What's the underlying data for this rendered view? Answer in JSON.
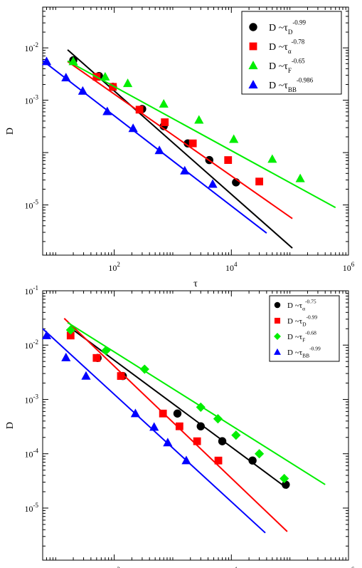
{
  "chart_data": [
    {
      "type": "scatter",
      "xscale": "log",
      "yscale": "log",
      "xlim": [
        6,
        1000000
      ],
      "ylim": [
        1.1e-06,
        0.06
      ],
      "xlabel": "τ",
      "ylabel": "D",
      "grid": false,
      "legend_position": "top-right",
      "x_ticks": [
        {
          "value": 100,
          "base": "10",
          "exp": "2"
        },
        {
          "value": 10000,
          "base": "10",
          "exp": "4"
        },
        {
          "value": 1000000,
          "base": "10",
          "exp": "6"
        }
      ],
      "y_ticks": [
        {
          "value": 0.01,
          "base": "10",
          "exp": "-2"
        },
        {
          "value": 0.001,
          "base": "10",
          "exp": "-3"
        },
        {
          "value": 1e-05,
          "base": "10",
          "exp": "-5"
        }
      ],
      "series": [
        {
          "name": "D ~τ_D^-0.99",
          "legend": {
            "pre": "D ~τ",
            "sub": "D",
            "sup": "-0.99"
          },
          "marker": "circle",
          "color": "#000000",
          "x": [
            20,
            55,
            95,
            300,
            700,
            1800,
            4200,
            12000
          ],
          "y": [
            0.0058,
            0.0029,
            0.0018,
            0.00068,
            0.00032,
            0.00015,
            7.2e-05,
            2.7e-05
          ],
          "fit": {
            "x": [
              16,
              110000
            ],
            "y": [
              0.0092,
              1.5e-06
            ]
          }
        },
        {
          "name": "D ~τ_α^-0.78",
          "legend": {
            "pre": "D ~τ",
            "sub": "α",
            "sup": "-0.78"
          },
          "marker": "square",
          "color": "#ff0000",
          "x": [
            50,
            95,
            270,
            730,
            2200,
            8800,
            30000
          ],
          "y": [
            0.0028,
            0.0018,
            0.00066,
            0.00038,
            0.00015,
            7.2e-05,
            2.8e-05
          ],
          "fit": {
            "x": [
              16,
              110000
            ],
            "y": [
              0.0055,
              5.5e-06
            ]
          }
        },
        {
          "name": "D ~τ_F^-0.65",
          "legend": {
            "pre": "D ~τ",
            "sub": "F",
            "sup": "-0.65"
          },
          "marker": "triangle",
          "color": "#00ee00",
          "x": [
            20,
            70,
            170,
            700,
            2800,
            11000,
            50000,
            150000
          ],
          "y": [
            0.0055,
            0.0028,
            0.0021,
            0.00085,
            0.00042,
            0.00018,
            7.5e-05,
            3.2e-05
          ],
          "fit": {
            "x": [
              16,
              600000
            ],
            "y": [
              0.0056,
              8.9e-06
            ]
          }
        },
        {
          "name": "D ~τ_BB^-0.986",
          "legend": {
            "pre": "D ~τ",
            "sub": "BB",
            "sup": "-0.986"
          },
          "marker": "triangle-up-blue",
          "color": "#0000ff",
          "x": [
            7,
            15,
            29,
            76,
            210,
            590,
            1600,
            4800
          ],
          "y": [
            0.0055,
            0.0027,
            0.0015,
            0.00061,
            0.00029,
            0.00011,
            4.5e-05,
            2.5e-05
          ],
          "fit": {
            "x": [
              6,
              40000
            ],
            "y": [
              0.0057,
              2.9e-06
            ]
          }
        }
      ]
    },
    {
      "type": "scatter",
      "xscale": "log",
      "yscale": "log",
      "xlim": [
        6,
        1000000
      ],
      "ylim": [
        1.1e-06,
        0.1
      ],
      "xlabel": "τ",
      "ylabel": "D",
      "grid": false,
      "legend_position": "top-right",
      "x_ticks": [
        {
          "value": 100,
          "base": "10",
          "exp": "2"
        },
        {
          "value": 10000,
          "base": "10",
          "exp": "4"
        },
        {
          "value": 1000000,
          "base": "10",
          "exp": "6"
        }
      ],
      "y_ticks": [
        {
          "value": 0.1,
          "base": "10",
          "exp": "-1"
        },
        {
          "value": 0.01,
          "base": "10",
          "exp": "-2"
        },
        {
          "value": 0.001,
          "base": "10",
          "exp": "-3"
        },
        {
          "value": 0.0001,
          "base": "10",
          "exp": "-4"
        },
        {
          "value": 1e-05,
          "base": "10",
          "exp": "-5"
        }
      ],
      "series": [
        {
          "name": "D ~τ_α^-0.75",
          "legend": {
            "pre": "D ~τ",
            "sub": "α",
            "sup": "-0.75"
          },
          "marker": "circle",
          "color": "#000000",
          "x": [
            52,
            140,
            1200,
            3000,
            7000,
            23000,
            85000
          ],
          "y": [
            0.0058,
            0.0027,
            0.00055,
            0.00032,
            0.00017,
            7.5e-05,
            2.7e-05
          ],
          "fit": {
            "x": [
              20,
              90000
            ],
            "y": [
              0.019,
              2.3e-05
            ]
          }
        },
        {
          "name": "D ~τ_D^-0.99",
          "legend": {
            "pre": "D ~τ",
            "sub": "D",
            "sup": "-0.99"
          },
          "marker": "square",
          "color": "#ff0000",
          "x": [
            18,
            50,
            130,
            680,
            1300,
            2600,
            6000
          ],
          "y": [
            0.015,
            0.0058,
            0.0027,
            0.00055,
            0.00032,
            0.00017,
            7.5e-05
          ],
          "fit": {
            "x": [
              14,
              90000
            ],
            "y": [
              0.031,
              3.7e-06
            ]
          }
        },
        {
          "name": "D ~τ_F^-0.68",
          "legend": {
            "pre": "D ~τ",
            "sub": "F",
            "sup": "-0.68"
          },
          "marker": "diamond",
          "color": "#00ee00",
          "x": [
            18,
            72,
            330,
            3000,
            5900,
            12000,
            30000,
            80000
          ],
          "y": [
            0.019,
            0.0079,
            0.0036,
            0.00072,
            0.00044,
            0.00022,
            0.0001,
            3.5e-05
          ],
          "fit": {
            "x": [
              16,
              400000
            ],
            "y": [
              0.026,
              2.71e-05
            ]
          }
        },
        {
          "name": "D ~τ_BB^-0.99",
          "legend": {
            "pre": "D ~τ",
            "sub": "BB",
            "sup": "-0.99"
          },
          "marker": "triangle-up-blue",
          "color": "#0000ff",
          "x": [
            7,
            15,
            33,
            230,
            480,
            820,
            1700
          ],
          "y": [
            0.015,
            0.0059,
            0.0027,
            0.00055,
            0.00031,
            0.00016,
            7.5e-05
          ],
          "fit": {
            "x": [
              6,
              38000
            ],
            "y": [
              0.02,
              3.5e-06
            ]
          }
        }
      ]
    }
  ]
}
